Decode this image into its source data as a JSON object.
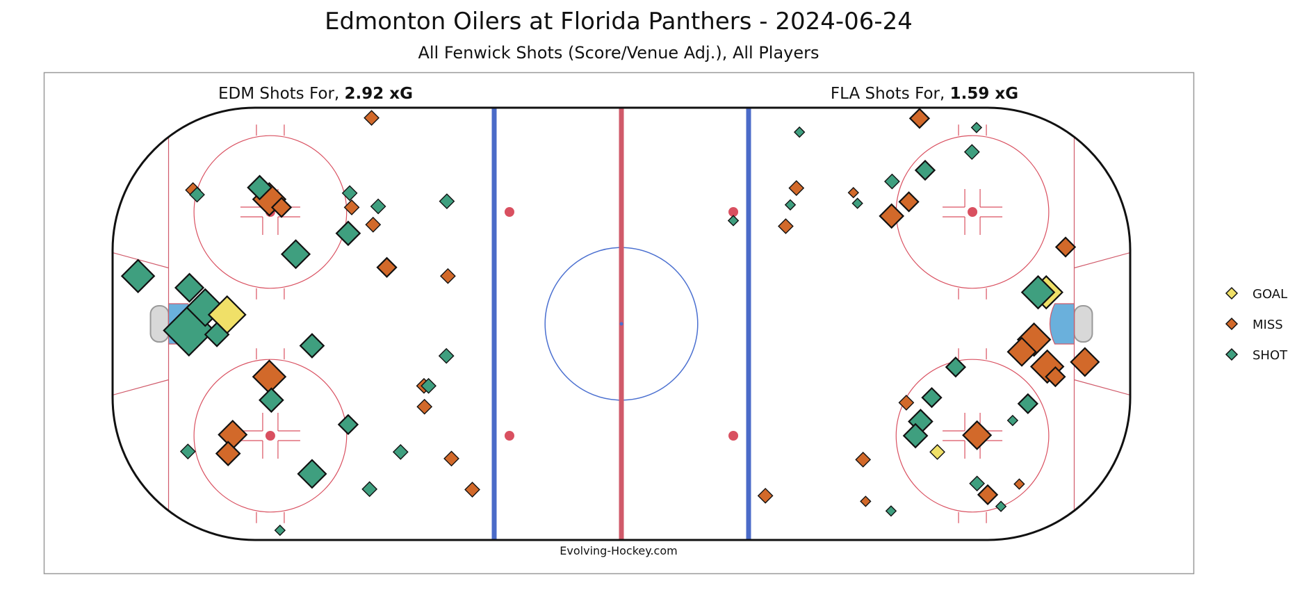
{
  "title": "Edmonton Oilers at Florida Panthers - 2024-06-24",
  "subtitle": "All Fenwick Shots (Score/Venue Adj.), All Players",
  "credit": "Evolving-Hockey.com",
  "panels": {
    "left": {
      "prefix": "EDM Shots For, ",
      "xg": "2.92 xG"
    },
    "right": {
      "prefix": "FLA Shots For, ",
      "xg": "1.59 xG"
    }
  },
  "legend": [
    {
      "label": "GOAL",
      "color": "#f0e068"
    },
    {
      "label": "MISS",
      "color": "#d2692a"
    },
    {
      "label": "SHOT",
      "color": "#3f9f7f"
    }
  ],
  "colors": {
    "goal": "#f0e068",
    "miss": "#d2692a",
    "shot": "#3f9f7f",
    "blue_line": "#4b6bc8",
    "red_line": "#d05a6a",
    "faceoff": "#d95060",
    "crease": "#6ab0dc",
    "net": "#d8d8d8",
    "center_circle": "#4a6fd0"
  },
  "chart_data": {
    "type": "scatter",
    "description_units": "rink feet, x: -100..100 (left goal end to right goal end), y: -42.5..42.5 (positive = top of rink)",
    "xlim": [
      -100,
      100
    ],
    "ylim": [
      -42.5,
      42.5
    ],
    "size_scale": "marker size proportional to shot expected goals (relative 1-10)",
    "series": [
      {
        "name": "EDM",
        "points": [
          {
            "x": -49.1,
            "y": 40.5,
            "type": "MISS",
            "size": 2
          },
          {
            "x": -71.1,
            "y": 26.8,
            "type": "SHOT",
            "size": 4
          },
          {
            "x": -69.2,
            "y": 24.5,
            "type": "MISS",
            "size": 6
          },
          {
            "x": -84.2,
            "y": 26.3,
            "type": "MISS",
            "size": 2
          },
          {
            "x": -83.4,
            "y": 25.4,
            "type": "SHOT",
            "size": 2
          },
          {
            "x": -66.8,
            "y": 22.9,
            "type": "MISS",
            "size": 3
          },
          {
            "x": -53.4,
            "y": 25.7,
            "type": "SHOT",
            "size": 2
          },
          {
            "x": -53.0,
            "y": 22.9,
            "type": "MISS",
            "size": 2
          },
          {
            "x": -47.8,
            "y": 23.1,
            "type": "SHOT",
            "size": 2
          },
          {
            "x": -34.3,
            "y": 24.1,
            "type": "SHOT",
            "size": 2
          },
          {
            "x": -48.8,
            "y": 19.5,
            "type": "MISS",
            "size": 2
          },
          {
            "x": -53.7,
            "y": 17.8,
            "type": "SHOT",
            "size": 4
          },
          {
            "x": -64.0,
            "y": 13.7,
            "type": "SHOT",
            "size": 5
          },
          {
            "x": -46.1,
            "y": 11.1,
            "type": "MISS",
            "size": 3
          },
          {
            "x": -34.1,
            "y": 9.4,
            "type": "MISS",
            "size": 2
          },
          {
            "x": -95.0,
            "y": 9.4,
            "type": "SHOT",
            "size": 6
          },
          {
            "x": -84.9,
            "y": 7.1,
            "type": "SHOT",
            "size": 5
          },
          {
            "x": -81.8,
            "y": 3.2,
            "type": "SHOT",
            "size": 7
          },
          {
            "x": -77.5,
            "y": 1.8,
            "type": "GOAL",
            "size": 7
          },
          {
            "x": -85.0,
            "y": -1.3,
            "type": "SHOT",
            "size": 10
          },
          {
            "x": -79.5,
            "y": -2.1,
            "type": "SHOT",
            "size": 4
          },
          {
            "x": -60.8,
            "y": -4.3,
            "type": "SHOT",
            "size": 4
          },
          {
            "x": -34.4,
            "y": -6.3,
            "type": "SHOT",
            "size": 2
          },
          {
            "x": -69.2,
            "y": -10.4,
            "type": "MISS",
            "size": 6
          },
          {
            "x": -68.8,
            "y": -15.0,
            "type": "SHOT",
            "size": 4
          },
          {
            "x": -38.8,
            "y": -12.2,
            "type": "MISS",
            "size": 2
          },
          {
            "x": -37.9,
            "y": -12.2,
            "type": "SHOT",
            "size": 2
          },
          {
            "x": -38.7,
            "y": -16.3,
            "type": "MISS",
            "size": 2
          },
          {
            "x": -53.7,
            "y": -19.8,
            "type": "SHOT",
            "size": 3
          },
          {
            "x": -76.4,
            "y": -21.8,
            "type": "MISS",
            "size": 5
          },
          {
            "x": -77.3,
            "y": -25.5,
            "type": "MISS",
            "size": 4
          },
          {
            "x": -85.2,
            "y": -25.1,
            "type": "SHOT",
            "size": 2
          },
          {
            "x": -43.4,
            "y": -25.2,
            "type": "SHOT",
            "size": 2
          },
          {
            "x": -33.4,
            "y": -26.5,
            "type": "MISS",
            "size": 2
          },
          {
            "x": -60.8,
            "y": -29.5,
            "type": "SHOT",
            "size": 5
          },
          {
            "x": -49.5,
            "y": -32.5,
            "type": "SHOT",
            "size": 2
          },
          {
            "x": -29.3,
            "y": -32.6,
            "type": "MISS",
            "size": 2
          },
          {
            "x": -67.1,
            "y": -40.6,
            "type": "SHOT",
            "size": 1
          }
        ]
      },
      {
        "name": "FLA",
        "points": [
          {
            "x": 58.6,
            "y": 40.4,
            "type": "MISS",
            "size": 3
          },
          {
            "x": 69.8,
            "y": 38.6,
            "type": "SHOT",
            "size": 1
          },
          {
            "x": 35.0,
            "y": 37.7,
            "type": "SHOT",
            "size": 1
          },
          {
            "x": 68.9,
            "y": 33.8,
            "type": "SHOT",
            "size": 2
          },
          {
            "x": 59.7,
            "y": 30.2,
            "type": "SHOT",
            "size": 3
          },
          {
            "x": 53.2,
            "y": 28.0,
            "type": "SHOT",
            "size": 2
          },
          {
            "x": 34.4,
            "y": 26.7,
            "type": "MISS",
            "size": 2
          },
          {
            "x": 45.6,
            "y": 25.8,
            "type": "MISS",
            "size": 1
          },
          {
            "x": 56.5,
            "y": 24.0,
            "type": "MISS",
            "size": 3
          },
          {
            "x": 46.4,
            "y": 23.7,
            "type": "SHOT",
            "size": 1
          },
          {
            "x": 33.2,
            "y": 23.4,
            "type": "SHOT",
            "size": 1
          },
          {
            "x": 53.1,
            "y": 21.2,
            "type": "MISS",
            "size": 4
          },
          {
            "x": 22.0,
            "y": 20.3,
            "type": "SHOT",
            "size": 1
          },
          {
            "x": 32.3,
            "y": 19.2,
            "type": "MISS",
            "size": 2
          },
          {
            "x": 87.3,
            "y": 15.1,
            "type": "MISS",
            "size": 3
          },
          {
            "x": 83.5,
            "y": 6.2,
            "type": "GOAL",
            "size": 6
          },
          {
            "x": 81.9,
            "y": 6.2,
            "type": "SHOT",
            "size": 6
          },
          {
            "x": 81.1,
            "y": -3.1,
            "type": "MISS",
            "size": 6
          },
          {
            "x": 78.7,
            "y": -5.5,
            "type": "MISS",
            "size": 5
          },
          {
            "x": 83.7,
            "y": -8.4,
            "type": "MISS",
            "size": 6
          },
          {
            "x": 85.3,
            "y": -10.4,
            "type": "MISS",
            "size": 3
          },
          {
            "x": 91.1,
            "y": -7.5,
            "type": "MISS",
            "size": 5
          },
          {
            "x": 65.7,
            "y": -8.5,
            "type": "SHOT",
            "size": 3
          },
          {
            "x": 61.0,
            "y": -14.5,
            "type": "SHOT",
            "size": 3
          },
          {
            "x": 56.0,
            "y": -15.5,
            "type": "MISS",
            "size": 2
          },
          {
            "x": 79.9,
            "y": -15.7,
            "type": "SHOT",
            "size": 3
          },
          {
            "x": 58.8,
            "y": -19.2,
            "type": "SHOT",
            "size": 4
          },
          {
            "x": 57.8,
            "y": -22.0,
            "type": "SHOT",
            "size": 4
          },
          {
            "x": 76.9,
            "y": -19.0,
            "type": "SHOT",
            "size": 1
          },
          {
            "x": 69.9,
            "y": -21.9,
            "type": "MISS",
            "size": 5
          },
          {
            "x": 62.1,
            "y": -25.2,
            "type": "GOAL",
            "size": 2
          },
          {
            "x": 47.5,
            "y": -26.7,
            "type": "MISS",
            "size": 2
          },
          {
            "x": 69.9,
            "y": -31.4,
            "type": "SHOT",
            "size": 2
          },
          {
            "x": 72.0,
            "y": -33.6,
            "type": "MISS",
            "size": 3
          },
          {
            "x": 78.2,
            "y": -31.5,
            "type": "MISS",
            "size": 1
          },
          {
            "x": 74.6,
            "y": -35.9,
            "type": "SHOT",
            "size": 1
          },
          {
            "x": 28.3,
            "y": -33.8,
            "type": "MISS",
            "size": 2
          },
          {
            "x": 48.0,
            "y": -34.9,
            "type": "MISS",
            "size": 1
          },
          {
            "x": 53.0,
            "y": -36.8,
            "type": "SHOT",
            "size": 1
          }
        ]
      }
    ]
  }
}
